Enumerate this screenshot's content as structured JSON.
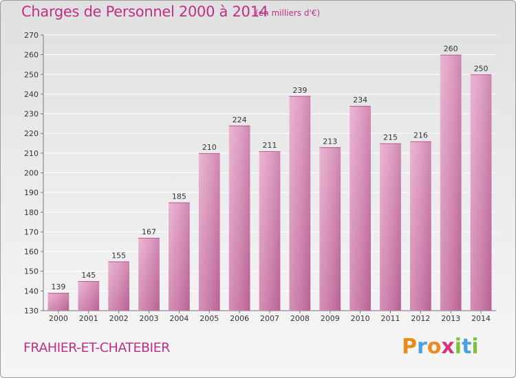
{
  "title": "Charges de Personnel 2000 à 2014",
  "subtitle": "(en milliers d'€)",
  "commune": "FRAHIER-ET-CHATEBIER",
  "logo": {
    "text": "Proxiti",
    "letters": [
      {
        "ch": "P",
        "color": "#e98b1d"
      },
      {
        "ch": "r",
        "color": "#4aa3df"
      },
      {
        "ch": "o",
        "color": "#e98b1d"
      },
      {
        "ch": "x",
        "color": "#d8337f"
      },
      {
        "ch": "i",
        "color": "#7fbf3f"
      },
      {
        "ch": "t",
        "color": "#4aa3df"
      },
      {
        "ch": "i",
        "color": "#7fbf3f"
      }
    ]
  },
  "colors": {
    "bar": "#d46fa6",
    "bar_light": "#e8aacb",
    "accent": "#c02f86"
  },
  "chart_data": {
    "type": "bar",
    "categories": [
      "2000",
      "2001",
      "2002",
      "2003",
      "2004",
      "2005",
      "2006",
      "2007",
      "2008",
      "2009",
      "2010",
      "2011",
      "2012",
      "2013",
      "2014"
    ],
    "values": [
      139,
      145,
      155,
      167,
      185,
      210,
      224,
      211,
      239,
      213,
      234,
      215,
      216,
      260,
      250
    ],
    "title": "Charges de Personnel 2000 à 2014",
    "subtitle": "(en milliers d'€)",
    "ylim": [
      130,
      270
    ],
    "yticks": [
      130,
      140,
      150,
      160,
      170,
      180,
      190,
      200,
      210,
      220,
      230,
      240,
      250,
      260,
      270
    ],
    "grid": true,
    "legend": "none"
  }
}
